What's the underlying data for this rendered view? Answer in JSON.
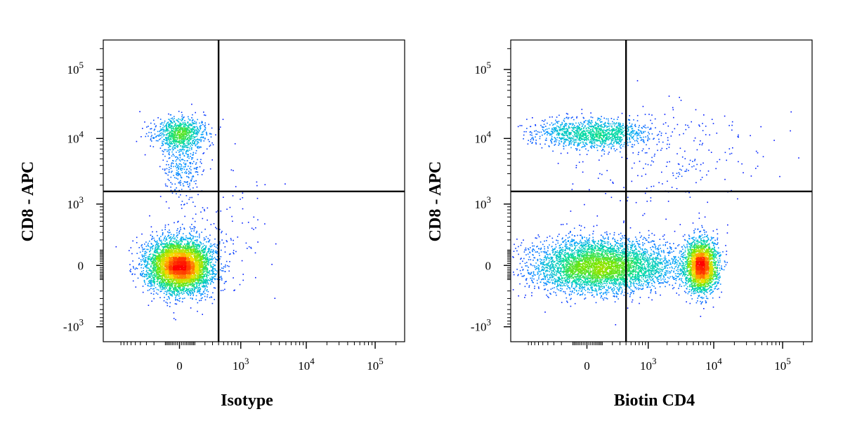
{
  "chart_data": [
    {
      "type": "scatter",
      "subtype": "flow-cytometry-density-plot",
      "xlabel": "Isotype",
      "ylabel": "CD8 - APC",
      "x_scale": "biexponential",
      "y_scale": "biexponential",
      "x_ticks": [
        {
          "value": 0,
          "base": "0",
          "exp": ""
        },
        {
          "value": 1000,
          "base": "10",
          "exp": "3"
        },
        {
          "value": 10000,
          "base": "10",
          "exp": "4"
        },
        {
          "value": 100000,
          "base": "10",
          "exp": "5"
        }
      ],
      "y_ticks": [
        {
          "value": -1000,
          "base": "-10",
          "exp": "3"
        },
        {
          "value": 0,
          "base": "0",
          "exp": ""
        },
        {
          "value": 1000,
          "base": "10",
          "exp": "3"
        },
        {
          "value": 10000,
          "base": "10",
          "exp": "4"
        },
        {
          "value": 100000,
          "base": "10",
          "exp": "5"
        }
      ],
      "gate": {
        "x": 400,
        "y": 1600
      },
      "populations": [
        {
          "x": 0,
          "y": 0,
          "count": 5200,
          "spread_x": 0.55,
          "spread_y": 0.45
        },
        {
          "x": 0,
          "y": 12000,
          "count": 900,
          "spread_x": 0.45,
          "spread_y": 0.28
        },
        {
          "x": 0,
          "y": 4000,
          "count": 300,
          "spread_x": 0.35,
          "spread_y": 0.6
        },
        {
          "x": 300,
          "y": 300,
          "count": 120,
          "spread_x": 1.0,
          "spread_y": 1.0
        }
      ]
    },
    {
      "type": "scatter",
      "subtype": "flow-cytometry-density-plot",
      "xlabel": "Biotin CD4",
      "ylabel": "CD8 - APC",
      "x_scale": "biexponential",
      "y_scale": "biexponential",
      "x_ticks": [
        {
          "value": 0,
          "base": "0",
          "exp": ""
        },
        {
          "value": 1000,
          "base": "10",
          "exp": "3"
        },
        {
          "value": 10000,
          "base": "10",
          "exp": "4"
        },
        {
          "value": 100000,
          "base": "10",
          "exp": "5"
        }
      ],
      "y_ticks": [
        {
          "value": -1000,
          "base": "-10",
          "exp": "3"
        },
        {
          "value": 0,
          "base": "0",
          "exp": ""
        },
        {
          "value": 1000,
          "base": "10",
          "exp": "3"
        },
        {
          "value": 10000,
          "base": "10",
          "exp": "4"
        },
        {
          "value": 100000,
          "base": "10",
          "exp": "5"
        }
      ],
      "gate": {
        "x": 400,
        "y": 1600
      },
      "populations": [
        {
          "x": 50,
          "y": 0,
          "count": 4200,
          "spread_x": 1.1,
          "spread_y": 0.45
        },
        {
          "x": 6500,
          "y": 0,
          "count": 2600,
          "spread_x": 0.28,
          "spread_y": 0.45
        },
        {
          "x": 30,
          "y": 12000,
          "count": 1300,
          "spread_x": 1.0,
          "spread_y": 0.25
        },
        {
          "x": 1200,
          "y": 0,
          "count": 500,
          "spread_x": 0.8,
          "spread_y": 0.4
        },
        {
          "x": 2000,
          "y": 5000,
          "count": 250,
          "spread_x": 1.6,
          "spread_y": 0.9
        }
      ]
    }
  ]
}
